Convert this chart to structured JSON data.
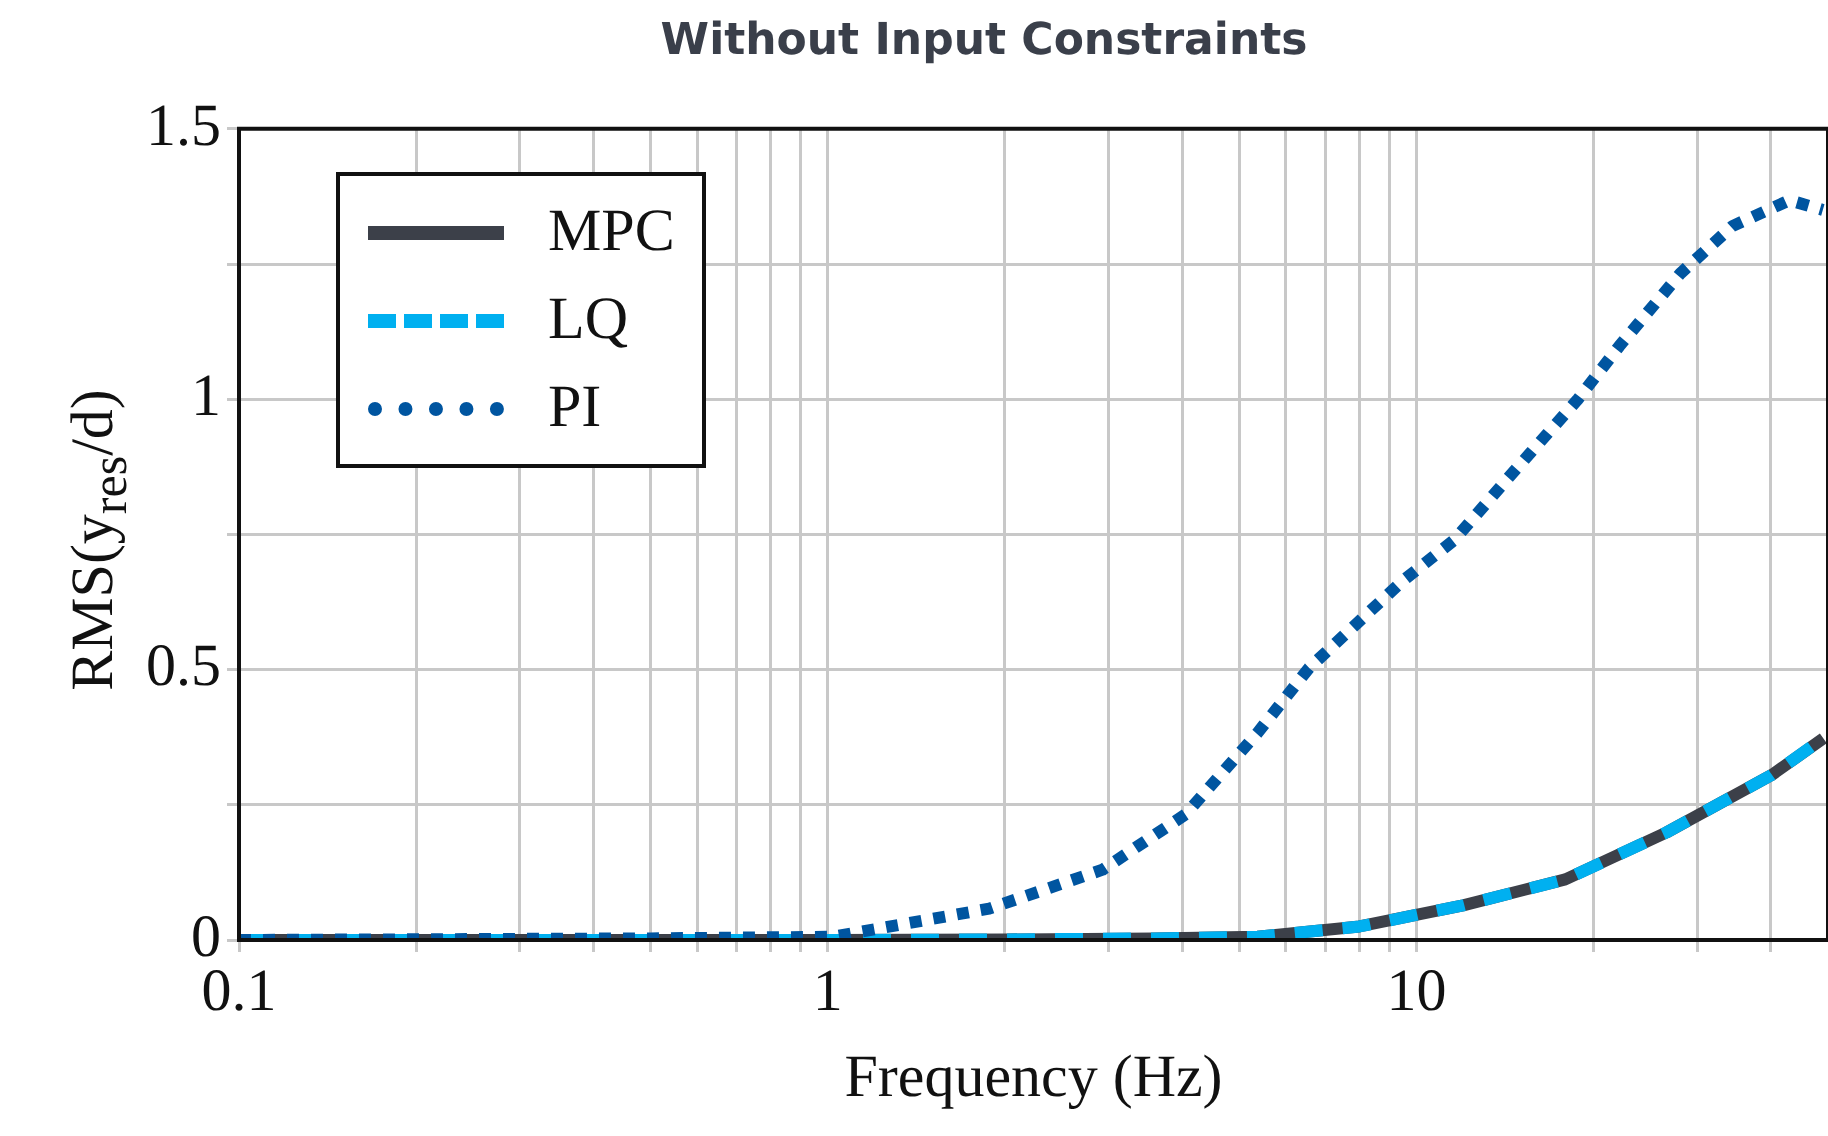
{
  "chart_data": {
    "type": "line",
    "title": "Without Input Constraints",
    "xlabel": "Frequency (Hz)",
    "ylabel": "RMS(y$_{res}$/d)",
    "log": "x",
    "xlim": [
      0.1,
      50
    ],
    "xticks": [
      0.1,
      {
        "value": 0.2,
        "label": null
      },
      {
        "value": 0.3,
        "label": null
      },
      {
        "value": 0.4,
        "label": null
      },
      {
        "value": 0.5,
        "label": null
      },
      {
        "value": 0.6,
        "label": null
      },
      {
        "value": 0.7,
        "label": null
      },
      {
        "value": 0.8,
        "label": null
      },
      {
        "value": 0.9,
        "label": null
      },
      1,
      {
        "value": 2,
        "label": null
      },
      {
        "value": 3,
        "label": null
      },
      {
        "value": 4,
        "label": null
      },
      {
        "value": 5,
        "label": null
      },
      {
        "value": 6,
        "label": null
      },
      {
        "value": 7,
        "label": null
      },
      {
        "value": 8,
        "label": null
      },
      {
        "value": 9,
        "label": null
      },
      10,
      {
        "value": 20,
        "label": null
      },
      {
        "value": 30,
        "label": null
      },
      {
        "value": 40,
        "label": null
      }
    ],
    "ylim": [
      0,
      1.5
    ],
    "yticks": [
      0,
      {
        "value": 0.25,
        "label": null
      },
      0.5,
      {
        "value": 0.75,
        "label": null
      },
      1,
      {
        "value": 1.25,
        "label": null
      },
      1.5
    ],
    "grid": true,
    "legend": "top left",
    "marker": "none",
    "series": [
      {
        "name": "MPC",
        "color": "#3c4049",
        "line_style": "solid",
        "x": [
          0.1,
          0.5,
          1,
          2,
          3.58,
          5.37,
          8,
          12,
          17.9,
          26.6,
          40.1,
          49.1
        ],
        "values": [
          0,
          0,
          0,
          0.001,
          0.003,
          0.006,
          0.025,
          0.064,
          0.112,
          0.199,
          0.305,
          0.373
        ]
      },
      {
        "name": "LQ",
        "color": "#00b0f0",
        "line_style": "dashed",
        "x": [
          0.1,
          0.5,
          1,
          2,
          3.58,
          5.37,
          8,
          12,
          17.9,
          26.6,
          40.1,
          49.1
        ],
        "values": [
          0,
          0,
          0,
          0.001,
          0.003,
          0.006,
          0.025,
          0.064,
          0.112,
          0.199,
          0.305,
          0.373
        ]
      },
      {
        "name": "PI",
        "color": "#0055a0",
        "line_style": "dotted",
        "x": [
          0.1,
          0.5,
          1.02,
          1.88,
          2.93,
          4.05,
          5.37,
          6.57,
          9.45,
          11.6,
          14.2,
          18.8,
          22.1,
          28.1,
          34.4,
          43,
          49
        ],
        "values": [
          0,
          0.003,
          0.006,
          0.058,
          0.13,
          0.232,
          0.383,
          0.503,
          0.663,
          0.74,
          0.85,
          1.0,
          1.098,
          1.233,
          1.32,
          1.368,
          1.35
        ]
      }
    ]
  }
}
